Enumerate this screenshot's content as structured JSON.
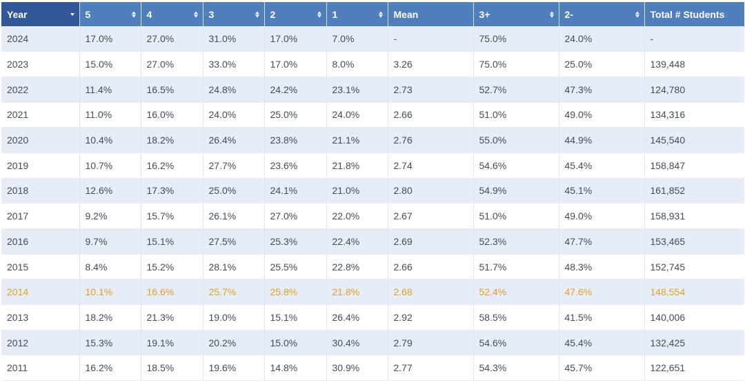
{
  "table": {
    "columns": [
      {
        "label": "Year",
        "name": "col-year",
        "sort": "caret"
      },
      {
        "label": "5",
        "name": "col-score-5",
        "sort": "both"
      },
      {
        "label": "4",
        "name": "col-score-4",
        "sort": "both"
      },
      {
        "label": "3",
        "name": "col-score-3",
        "sort": "both"
      },
      {
        "label": "2",
        "name": "col-score-2",
        "sort": "both"
      },
      {
        "label": "1",
        "name": "col-score-1",
        "sort": "both"
      },
      {
        "label": "Mean",
        "name": "col-mean",
        "sort": "none"
      },
      {
        "label": "3+",
        "name": "col-3plus",
        "sort": "both"
      },
      {
        "label": "2-",
        "name": "col-2minus",
        "sort": "both"
      },
      {
        "label": "Total # Students",
        "name": "col-total-students",
        "sort": "none"
      }
    ],
    "rows": [
      {
        "cells": [
          "2024",
          "17.0%",
          "27.0%",
          "31.0%",
          "17.0%",
          "7.0%",
          "-",
          "75.0%",
          "24.0%",
          "-"
        ]
      },
      {
        "cells": [
          "2023",
          "15.0%",
          "27.0%",
          "33.0%",
          "17.0%",
          "8.0%",
          "3.26",
          "75.0%",
          "25.0%",
          "139,448"
        ]
      },
      {
        "cells": [
          "2022",
          "11.4%",
          "16.5%",
          "24.8%",
          "24.2%",
          "23.1%",
          "2.73",
          "52.7%",
          "47.3%",
          "124,780"
        ]
      },
      {
        "cells": [
          "2021",
          "11.0%",
          "16.0%",
          "24.0%",
          "25.0%",
          "24.0%",
          "2.66",
          "51.0%",
          "49.0%",
          "134,316"
        ]
      },
      {
        "cells": [
          "2020",
          "10.4%",
          "18.2%",
          "26.4%",
          "23.8%",
          "21.1%",
          "2.76",
          "55.0%",
          "44.9%",
          "145,540"
        ]
      },
      {
        "cells": [
          "2019",
          "10.7%",
          "16.2%",
          "27.7%",
          "23.6%",
          "21.8%",
          "2.74",
          "54.6%",
          "45.4%",
          "158,847"
        ]
      },
      {
        "cells": [
          "2018",
          "12.6%",
          "17.3%",
          "25.0%",
          "24.1%",
          "21.0%",
          "2.80",
          "54.9%",
          "45.1%",
          "161,852"
        ]
      },
      {
        "cells": [
          "2017",
          "9.2%",
          "15.7%",
          "26.1%",
          "27.0%",
          "22.0%",
          "2.67",
          "51.0%",
          "49.0%",
          "158,931"
        ]
      },
      {
        "cells": [
          "2016",
          "9.7%",
          "15.1%",
          "27.5%",
          "25.3%",
          "22.4%",
          "2.69",
          "52.3%",
          "47.7%",
          "153,465"
        ]
      },
      {
        "cells": [
          "2015",
          "8.4%",
          "15.2%",
          "28.1%",
          "25.5%",
          "22.8%",
          "2.66",
          "51.7%",
          "48.3%",
          "152,745"
        ]
      },
      {
        "cells": [
          "2014",
          "10.1%",
          "16.6%",
          "25.7%",
          "25.8%",
          "21.8%",
          "2.68",
          "52.4%",
          "47.6%",
          "148,554"
        ],
        "highlight": true
      },
      {
        "cells": [
          "2013",
          "18.2%",
          "21.3%",
          "19.0%",
          "15.1%",
          "26.4%",
          "2.92",
          "58.5%",
          "41.5%",
          "140,006"
        ]
      },
      {
        "cells": [
          "2012",
          "15.3%",
          "19.1%",
          "20.2%",
          "15.0%",
          "30.4%",
          "2.79",
          "54.6%",
          "45.4%",
          "132,425"
        ]
      },
      {
        "cells": [
          "2011",
          "16.2%",
          "18.5%",
          "19.6%",
          "14.8%",
          "30.9%",
          "2.77",
          "54.3%",
          "45.7%",
          "122,651"
        ]
      }
    ]
  },
  "colors": {
    "header_bg": "#4f7fbd",
    "header_first_bg": "#33589a",
    "row_alt_bg": "#e7edf7",
    "highlight_text": "#e0a123"
  }
}
